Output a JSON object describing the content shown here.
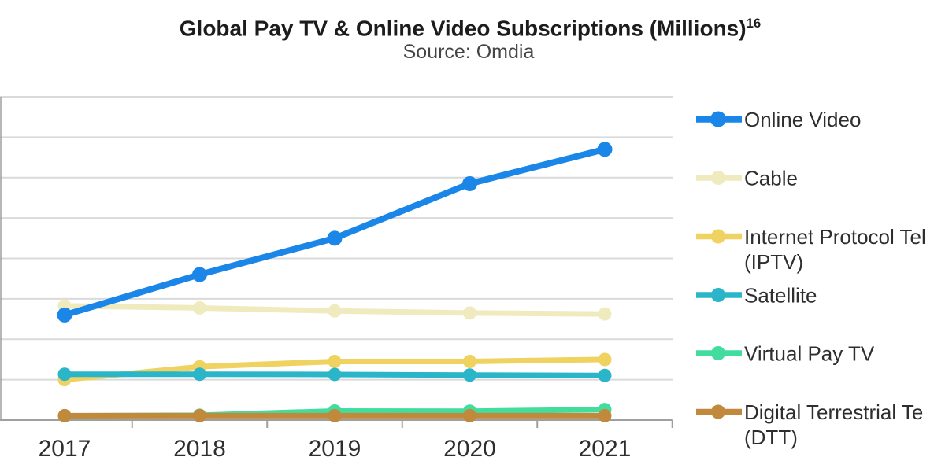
{
  "chart_data": {
    "type": "line",
    "title": "Global Pay TV & Online Video Subscriptions (Millions)",
    "footnote_marker": "16",
    "subtitle": "Source: Omdia",
    "xlabel": "",
    "ylabel": "",
    "categories": [
      "2017",
      "2018",
      "2019",
      "2020",
      "2021"
    ],
    "ylim": [
      0,
      1600
    ],
    "grid": true,
    "gridline_step": 200,
    "legend_position": "right",
    "series": [
      {
        "name": "Online Video",
        "label_lines": [
          "Online Video"
        ],
        "color": "#1a86e8",
        "values": [
          520,
          720,
          900,
          1170,
          1340
        ]
      },
      {
        "name": "Cable",
        "label_lines": [
          "Cable"
        ],
        "color": "#f0ebbe",
        "values": [
          565,
          555,
          540,
          530,
          525
        ]
      },
      {
        "name": "Internet Protocol Television (IPTV)",
        "label_lines": [
          "Internet Protocol Tel",
          "(IPTV)"
        ],
        "color": "#efd25f",
        "values": [
          200,
          264,
          290,
          290,
          300
        ]
      },
      {
        "name": "Satellite",
        "label_lines": [
          "Satellite"
        ],
        "color": "#2ab5c8",
        "values": [
          227,
          227,
          226,
          223,
          221
        ]
      },
      {
        "name": "Virtual Pay TV",
        "label_lines": [
          "Virtual Pay TV"
        ],
        "color": "#42dd9e",
        "values": [
          21,
          24,
          45,
          44,
          52
        ]
      },
      {
        "name": "Digital Terrestrial Television (DTT)",
        "label_lines": [
          "Digital Terrestrial Te",
          "(DTT)"
        ],
        "color": "#c1893c",
        "values": [
          22,
          22,
          22,
          22,
          22
        ]
      }
    ],
    "colors": {
      "gridline": "#dadada",
      "axis": "#9f9f9f",
      "text": "#2e2e2e"
    }
  }
}
